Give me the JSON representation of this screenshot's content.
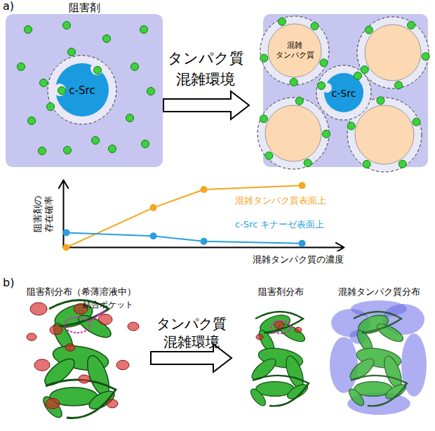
{
  "panel_a": {
    "label": "a)",
    "inhibitor": "阻害剤",
    "target": "c-Src",
    "arrow_text": [
      "タンパク質",
      "混雑環境"
    ],
    "crowder": [
      "混雑",
      "タンパク質"
    ]
  },
  "chart_data": {
    "type": "line",
    "x_label": "混雑タンパク質の濃度",
    "y_label": [
      "阻害剤の",
      "存在確率"
    ],
    "x": [
      0.1,
      3.2,
      5,
      8.5
    ],
    "xlim": [
      0,
      10
    ],
    "ylim": [
      0,
      10
    ],
    "tick_labels": false,
    "marker": "circle",
    "series": [
      {
        "name": "混雑タンパク質表面上",
        "color": "#f5a623",
        "values": [
          0,
          5.9,
          8.6,
          9.2
        ]
      },
      {
        "name": "c-Src キナーゼ表面上",
        "color": "#2a9de0",
        "values": [
          2.2,
          1.7,
          0.9,
          0.6
        ]
      }
    ]
  },
  "panel_b": {
    "label": "b)",
    "left_title": "阻害剤分布（希薄溶液中）",
    "pocket": "結合ポケット",
    "arrow_text": [
      "タンパク質",
      "混雑環境"
    ],
    "middle_title": "阻害剤分布",
    "right_title": "混雑タンパク質分布"
  }
}
